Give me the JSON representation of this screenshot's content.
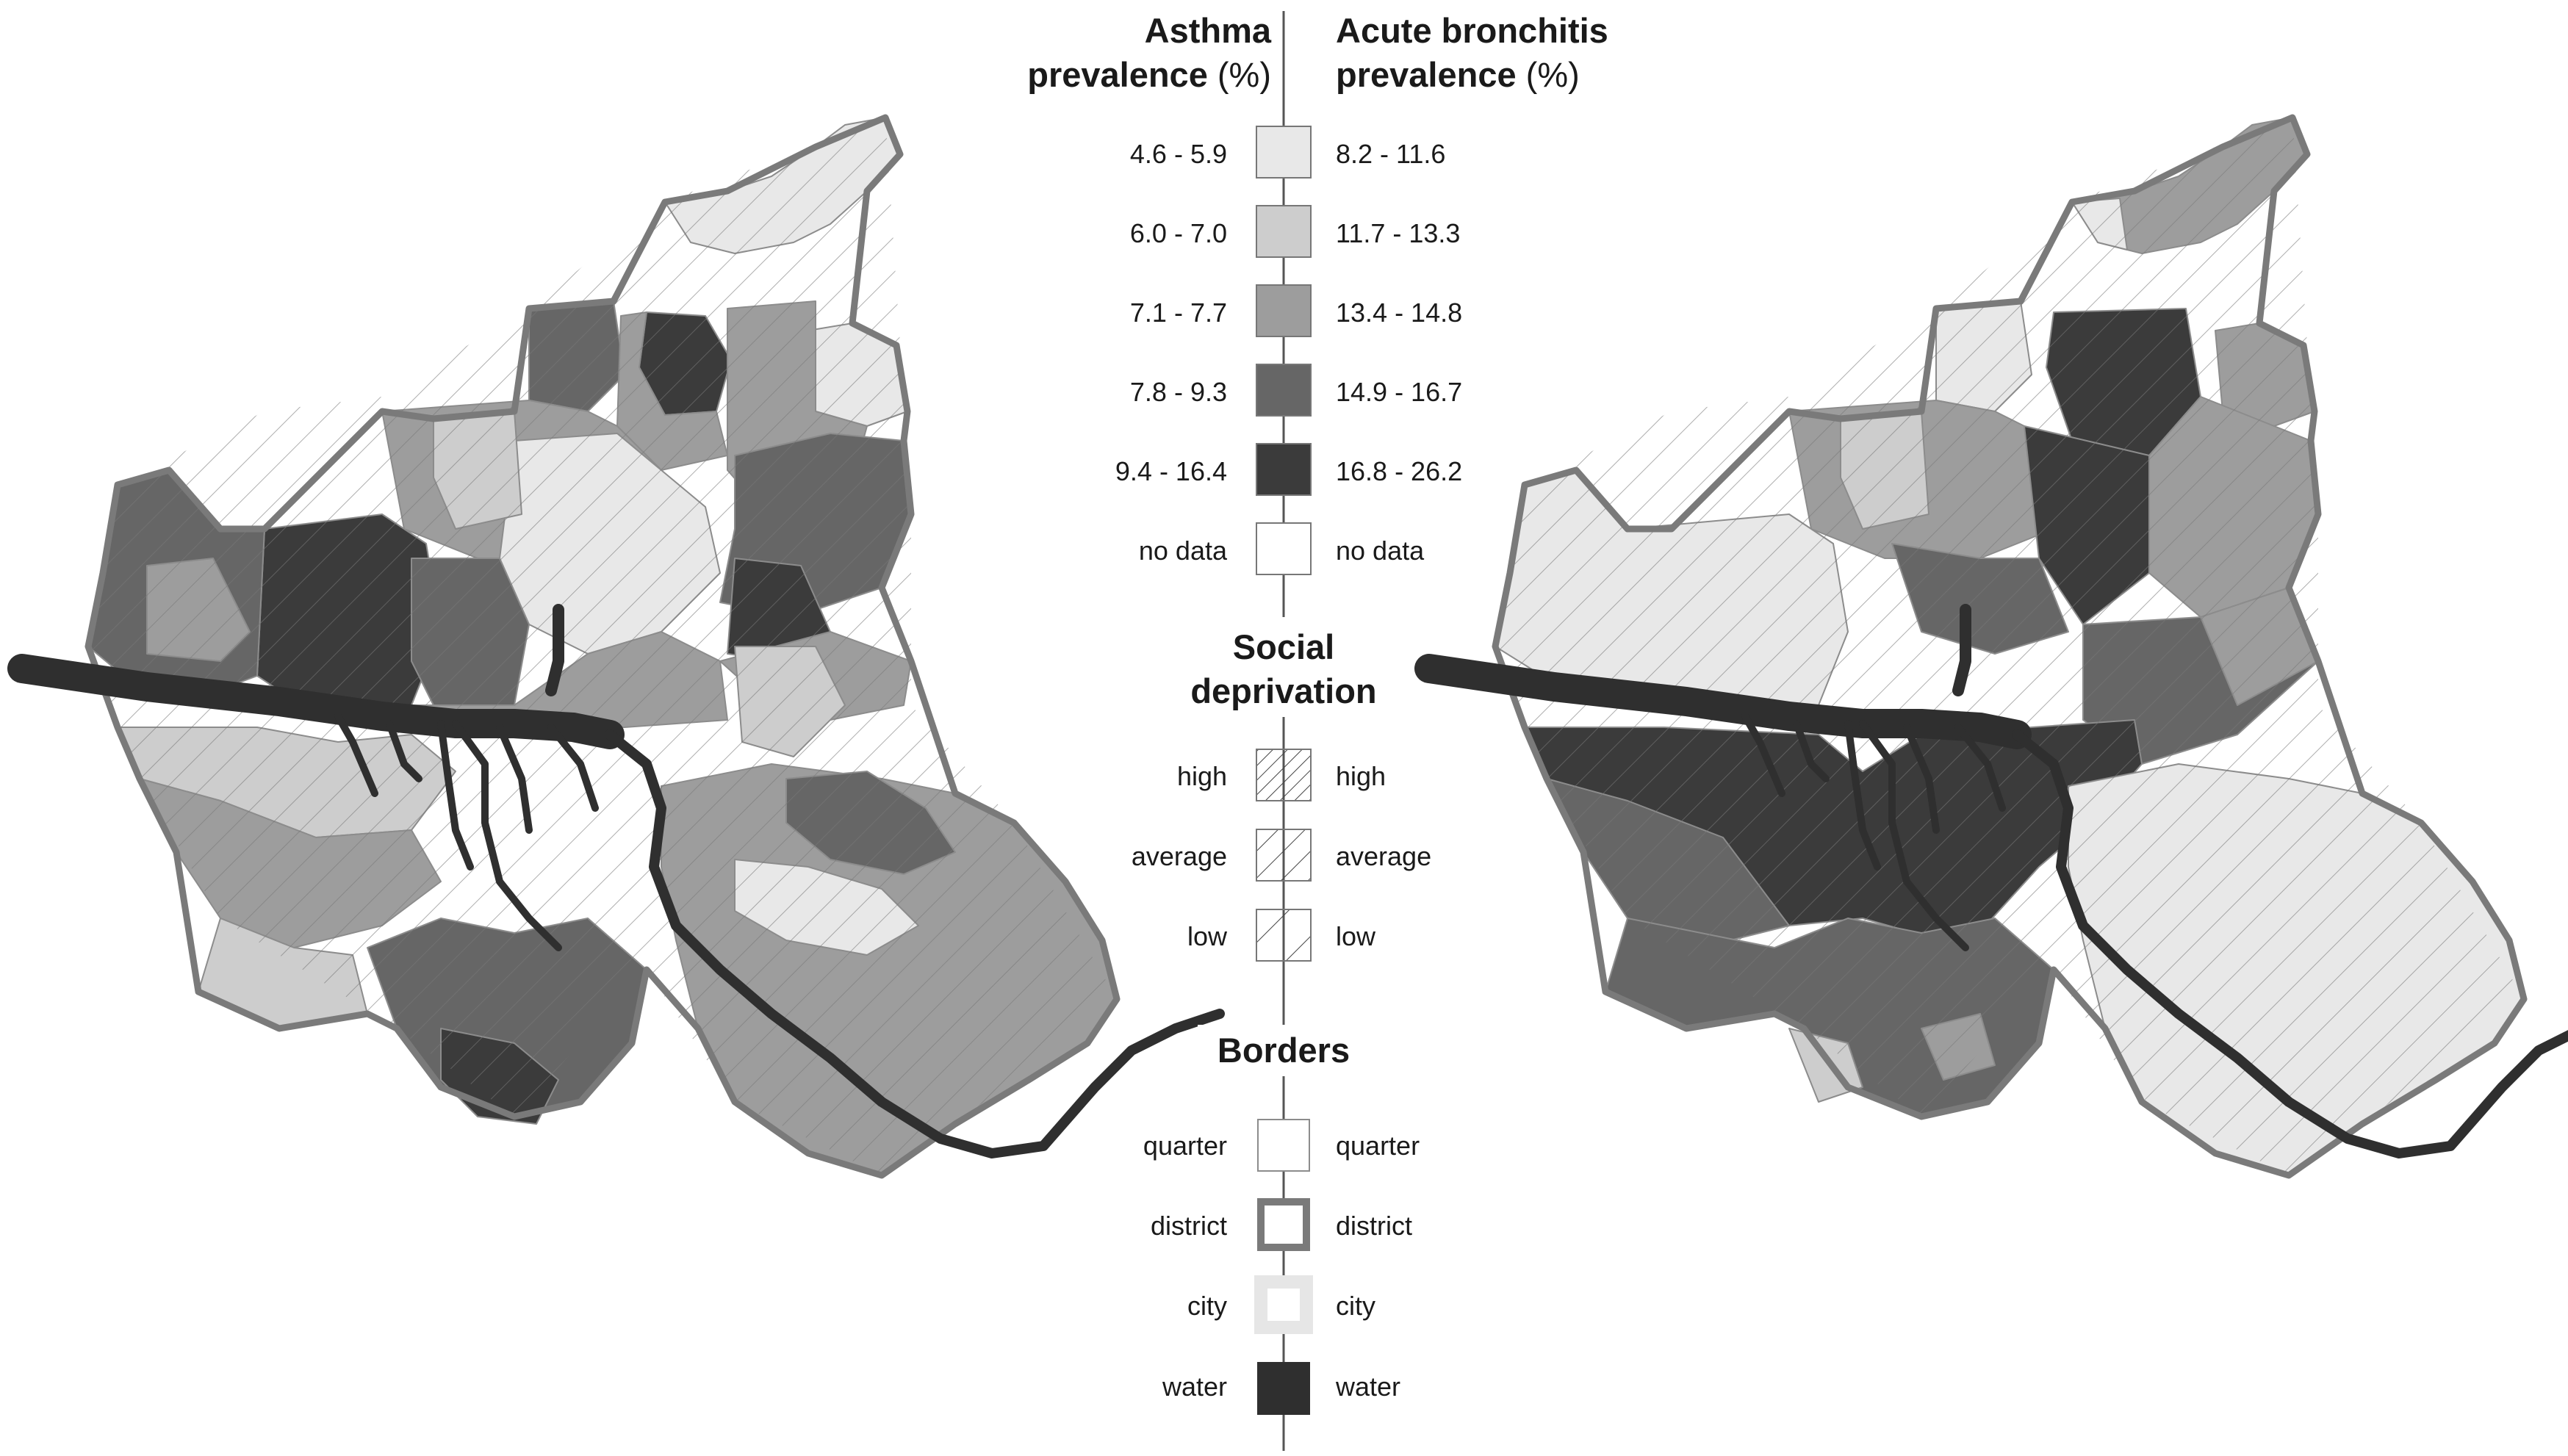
{
  "legend": {
    "asthma_title_1": "Asthma",
    "asthma_title_2_bold": "prevalence",
    "asthma_title_2_unit": "(%)",
    "bronchitis_title_1": "Acute bronchitis",
    "bronchitis_title_2_bold": "prevalence",
    "bronchitis_title_2_unit": "(%)",
    "classes": [
      {
        "asthma": "4.6 - 5.9",
        "bronchitis": "8.2 - 11.6",
        "color": "#e8e8e8"
      },
      {
        "asthma": "6.0 - 7.0",
        "bronchitis": "11.7 - 13.3",
        "color": "#cdcdcd"
      },
      {
        "asthma": "7.1 - 7.7",
        "bronchitis": "13.4 - 14.8",
        "color": "#9d9d9d"
      },
      {
        "asthma": "7.8 - 9.3",
        "bronchitis": "14.9 - 16.7",
        "color": "#666666"
      },
      {
        "asthma": "9.4 - 16.4",
        "bronchitis": "16.8 - 26.2",
        "color": "#3b3b3b"
      },
      {
        "asthma": "no data",
        "bronchitis": "no data",
        "color": "#ffffff"
      }
    ],
    "deprivation_title_1": "Social",
    "deprivation_title_2": "deprivation",
    "deprivation_levels": [
      {
        "left": "high",
        "right": "high",
        "hatch": "dense"
      },
      {
        "left": "average",
        "right": "average",
        "hatch": "medium"
      },
      {
        "left": "low",
        "right": "low",
        "hatch": "sparse"
      }
    ],
    "borders_title": "Borders",
    "borders": [
      {
        "left": "quarter",
        "right": "quarter",
        "style": "quarter"
      },
      {
        "left": "district",
        "right": "district",
        "style": "district"
      },
      {
        "left": "city",
        "right": "city",
        "style": "city"
      },
      {
        "left": "water",
        "right": "water",
        "style": "water"
      }
    ]
  },
  "colors": {
    "water": "#2f2f2f",
    "district_border": "#7a7a7a",
    "city_border": "#e6e6e6",
    "quarter_border": "#8c8c8c",
    "axis_line": "#555555"
  },
  "maps": [
    {
      "name": "asthma-map",
      "indicator": "Asthma prevalence (%)"
    },
    {
      "name": "acute-bronchitis-map",
      "indicator": "Acute bronchitis prevalence (%)"
    }
  ]
}
